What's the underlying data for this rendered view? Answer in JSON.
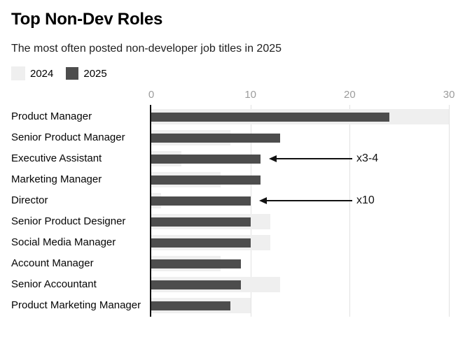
{
  "header": {
    "title": "Top Non-Dev Roles",
    "subtitle": "The most often posted non-developer job titles in 2025"
  },
  "legend": {
    "items": [
      {
        "label": "2024",
        "color": "#efefef"
      },
      {
        "label": "2025",
        "color": "#4d4d4d"
      }
    ]
  },
  "chart_data": {
    "type": "bar",
    "orientation": "horizontal",
    "title": "Top Non-Dev Roles",
    "subtitle": "The most often posted non-developer job titles in 2025",
    "categories": [
      "Product Manager",
      "Senior Product Manager",
      "Executive Assistant",
      "Marketing Manager",
      "Director",
      "Senior Product Designer",
      "Social Media Manager",
      "Account Manager",
      "Senior Accountant",
      "Product Marketing Manager"
    ],
    "series": [
      {
        "name": "2024",
        "color": "#efefef",
        "values": [
          30,
          8,
          3,
          7,
          1,
          12,
          12,
          7,
          13,
          10
        ]
      },
      {
        "name": "2025",
        "color": "#4d4d4d",
        "values": [
          24,
          13,
          11,
          11,
          10,
          10,
          10,
          9,
          9,
          8
        ]
      }
    ],
    "x_ticks": [
      0,
      10,
      20,
      30
    ],
    "xlim": [
      0,
      30.9
    ],
    "grid": "vertical",
    "legend_position": "top-left",
    "annotations": [
      {
        "category": "Executive Assistant",
        "label": "x3-4"
      },
      {
        "category": "Director",
        "label": "x10"
      }
    ]
  }
}
